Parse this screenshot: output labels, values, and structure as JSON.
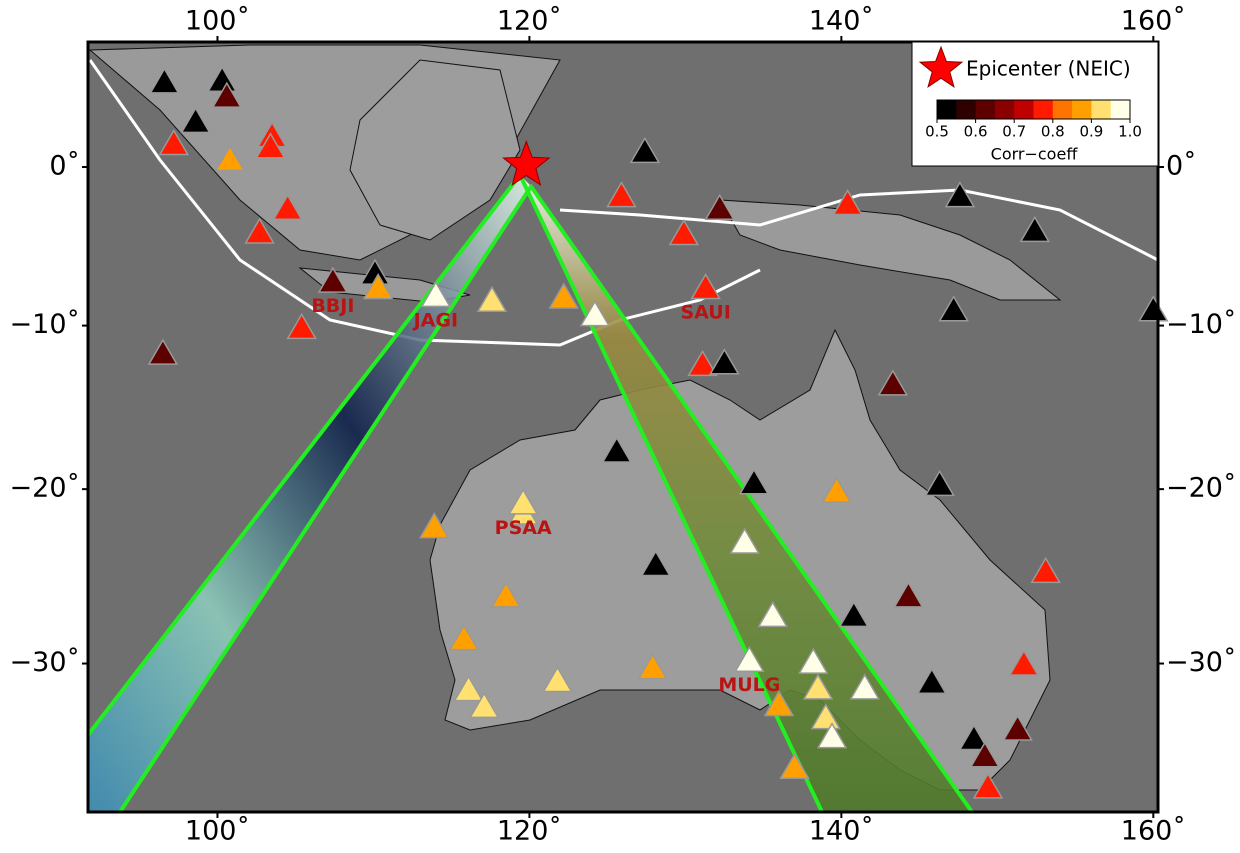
{
  "map": {
    "lonlim": [
      91.7,
      160.3
    ],
    "latlim": [
      -37.8,
      7.9
    ],
    "lonticks": [
      {
        "value": 100,
        "label": "100˚"
      },
      {
        "value": 120,
        "label": "120˚"
      },
      {
        "value": 140,
        "label": "140˚"
      },
      {
        "value": 160,
        "label": "160˚"
      }
    ],
    "latticks": [
      {
        "value": 0,
        "label": "0˚"
      },
      {
        "value": -10,
        "label": "−10˚"
      },
      {
        "value": -20,
        "label": "−20˚"
      },
      {
        "value": -30,
        "label": "−30˚"
      }
    ],
    "epicenter": {
      "lon": 119.8,
      "lat": 0.1,
      "label": "Epicenter (NEIC)",
      "color": "#ff0000"
    },
    "colorbar": {
      "label": "Corr−coeff",
      "lim": [
        0.5,
        1.0
      ],
      "colors": [
        "#000000",
        "#2e0000",
        "#5c0000",
        "#8a0000",
        "#c00000",
        "#ff1a00",
        "#ff7400",
        "#ffa000",
        "#ffe070",
        "#ffffe8"
      ],
      "ticks": [
        0.5,
        0.6,
        0.7,
        0.8,
        0.9,
        {
          "value": 1,
          "label": "1.0"
        }
      ]
    },
    "stations": [
      {
        "lon": 96.6,
        "lat": 5.3,
        "corr": 0.52
      },
      {
        "lon": 100.3,
        "lat": 5.4,
        "corr": 0.52
      },
      {
        "lon": 100.6,
        "lat": 4.4,
        "corr": 0.62
      },
      {
        "lon": 98.6,
        "lat": 2.8,
        "corr": 0.52
      },
      {
        "lon": 97.2,
        "lat": 1.4,
        "corr": 0.76
      },
      {
        "lon": 103.5,
        "lat": 1.9,
        "corr": 0.76
      },
      {
        "lon": 103.4,
        "lat": 1.2,
        "corr": 0.76
      },
      {
        "lon": 100.8,
        "lat": 0.4,
        "corr": 0.86
      },
      {
        "lon": 104.5,
        "lat": -2.7,
        "corr": 0.76
      },
      {
        "lon": 102.7,
        "lat": -4.2,
        "corr": 0.76
      },
      {
        "lon": 107.4,
        "lat": -7.3,
        "corr": 0.62,
        "name": "BBJI"
      },
      {
        "lon": 110.1,
        "lat": -6.8,
        "corr": 0.52
      },
      {
        "lon": 110.3,
        "lat": -7.7,
        "corr": 0.86
      },
      {
        "lon": 114.0,
        "lat": -8.2,
        "corr": 0.98,
        "name": "JAGI"
      },
      {
        "lon": 117.6,
        "lat": -8.5,
        "corr": 0.93
      },
      {
        "lon": 122.2,
        "lat": -8.3,
        "corr": 0.86
      },
      {
        "lon": 124.2,
        "lat": -9.4,
        "corr": 0.98
      },
      {
        "lon": 105.4,
        "lat": -10.2,
        "corr": 0.76
      },
      {
        "lon": 96.5,
        "lat": -11.8,
        "corr": 0.62
      },
      {
        "lon": 125.9,
        "lat": -1.9,
        "corr": 0.76
      },
      {
        "lon": 127.4,
        "lat": 0.9,
        "corr": 0.52
      },
      {
        "lon": 129.9,
        "lat": -4.3,
        "corr": 0.76
      },
      {
        "lon": 132.2,
        "lat": -2.7,
        "corr": 0.62
      },
      {
        "lon": 131.3,
        "lat": -7.7,
        "corr": 0.76,
        "name": "SAUI"
      },
      {
        "lon": 140.4,
        "lat": -2.4,
        "corr": 0.76
      },
      {
        "lon": 147.6,
        "lat": -1.9,
        "corr": 0.52
      },
      {
        "lon": 152.4,
        "lat": -4.1,
        "corr": 0.52
      },
      {
        "lon": 147.2,
        "lat": -9.1,
        "corr": 0.52
      },
      {
        "lon": 160.0,
        "lat": -9.1,
        "corr": 0.52
      },
      {
        "lon": 131.1,
        "lat": -12.5,
        "corr": 0.76
      },
      {
        "lon": 132.5,
        "lat": -12.4,
        "corr": 0.52
      },
      {
        "lon": 143.3,
        "lat": -13.7,
        "corr": 0.62
      },
      {
        "lon": 125.6,
        "lat": -17.8,
        "corr": 0.52
      },
      {
        "lon": 134.4,
        "lat": -19.7,
        "corr": 0.52
      },
      {
        "lon": 139.7,
        "lat": -20.2,
        "corr": 0.86
      },
      {
        "lon": 146.3,
        "lat": -19.8,
        "corr": 0.52
      },
      {
        "lon": 119.6,
        "lat": -21.5,
        "corr": 0.93
      },
      {
        "lon": 119.6,
        "lat": -20.9,
        "corr": 0.93,
        "name": "PSAA"
      },
      {
        "lon": 113.9,
        "lat": -22.3,
        "corr": 0.86
      },
      {
        "lon": 133.8,
        "lat": -23.2,
        "corr": 0.98
      },
      {
        "lon": 128.1,
        "lat": -24.5,
        "corr": 0.52
      },
      {
        "lon": 153.1,
        "lat": -24.9,
        "corr": 0.76
      },
      {
        "lon": 118.5,
        "lat": -26.3,
        "corr": 0.86
      },
      {
        "lon": 144.3,
        "lat": -26.3,
        "corr": 0.62
      },
      {
        "lon": 135.6,
        "lat": -27.4,
        "corr": 0.98
      },
      {
        "lon": 140.8,
        "lat": -27.4,
        "corr": 0.52
      },
      {
        "lon": 115.8,
        "lat": -28.7,
        "corr": 0.86
      },
      {
        "lon": 127.9,
        "lat": -30.3,
        "corr": 0.86
      },
      {
        "lon": 134.1,
        "lat": -29.9,
        "corr": 0.98,
        "name": "MULG"
      },
      {
        "lon": 138.2,
        "lat": -30.0,
        "corr": 0.98
      },
      {
        "lon": 151.7,
        "lat": -30.1,
        "corr": 0.76
      },
      {
        "lon": 121.8,
        "lat": -31.0,
        "corr": 0.93
      },
      {
        "lon": 116.1,
        "lat": -31.5,
        "corr": 0.93
      },
      {
        "lon": 117.1,
        "lat": -32.4,
        "corr": 0.93
      },
      {
        "lon": 138.5,
        "lat": -31.4,
        "corr": 0.93
      },
      {
        "lon": 141.5,
        "lat": -31.4,
        "corr": 0.98
      },
      {
        "lon": 145.8,
        "lat": -31.1,
        "corr": 0.52
      },
      {
        "lon": 136.0,
        "lat": -32.3,
        "corr": 0.86
      },
      {
        "lon": 139.0,
        "lat": -33.0,
        "corr": 0.93
      },
      {
        "lon": 139.4,
        "lat": -34.0,
        "corr": 0.98
      },
      {
        "lon": 151.3,
        "lat": -33.6,
        "corr": 0.62
      },
      {
        "lon": 148.5,
        "lat": -34.1,
        "corr": 0.52
      },
      {
        "lon": 149.2,
        "lat": -35.0,
        "corr": 0.62
      },
      {
        "lon": 137.0,
        "lat": -35.6,
        "corr": 0.86
      },
      {
        "lon": 149.4,
        "lat": -36.6,
        "corr": 0.76
      }
    ]
  }
}
